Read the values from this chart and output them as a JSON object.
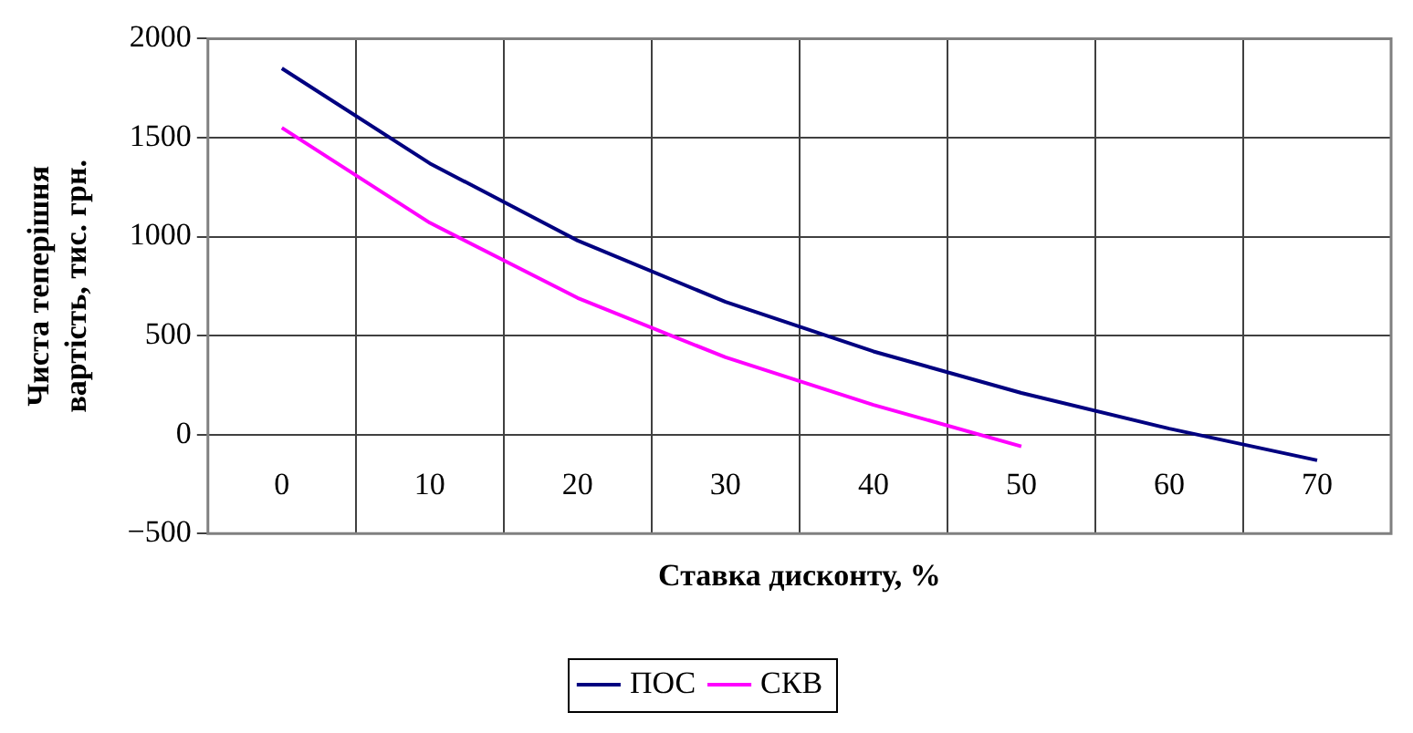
{
  "chart_data": {
    "type": "line",
    "xlabel": "Ставка дисконту, %",
    "ylabel": "Чиста теперішня вартість, тис. грн.",
    "categories": [
      "0",
      "10",
      "20",
      "30",
      "40",
      "50",
      "60",
      "70"
    ],
    "series": [
      {
        "name": "ПОС",
        "color": "#000080",
        "values": [
          1850,
          1370,
          980,
          670,
          420,
          210,
          30,
          -130
        ]
      },
      {
        "name": "СКВ",
        "color": "#ff00ff",
        "values": [
          1550,
          1070,
          690,
          390,
          150,
          -60,
          null,
          null
        ]
      }
    ],
    "ylim": [
      -500,
      2000
    ],
    "yticks": [
      {
        "value": -500,
        "label": "−500"
      },
      0,
      500,
      1000,
      1500,
      2000
    ],
    "grid": true,
    "legend": "bottom",
    "marker": "none",
    "line_style": "solid"
  }
}
